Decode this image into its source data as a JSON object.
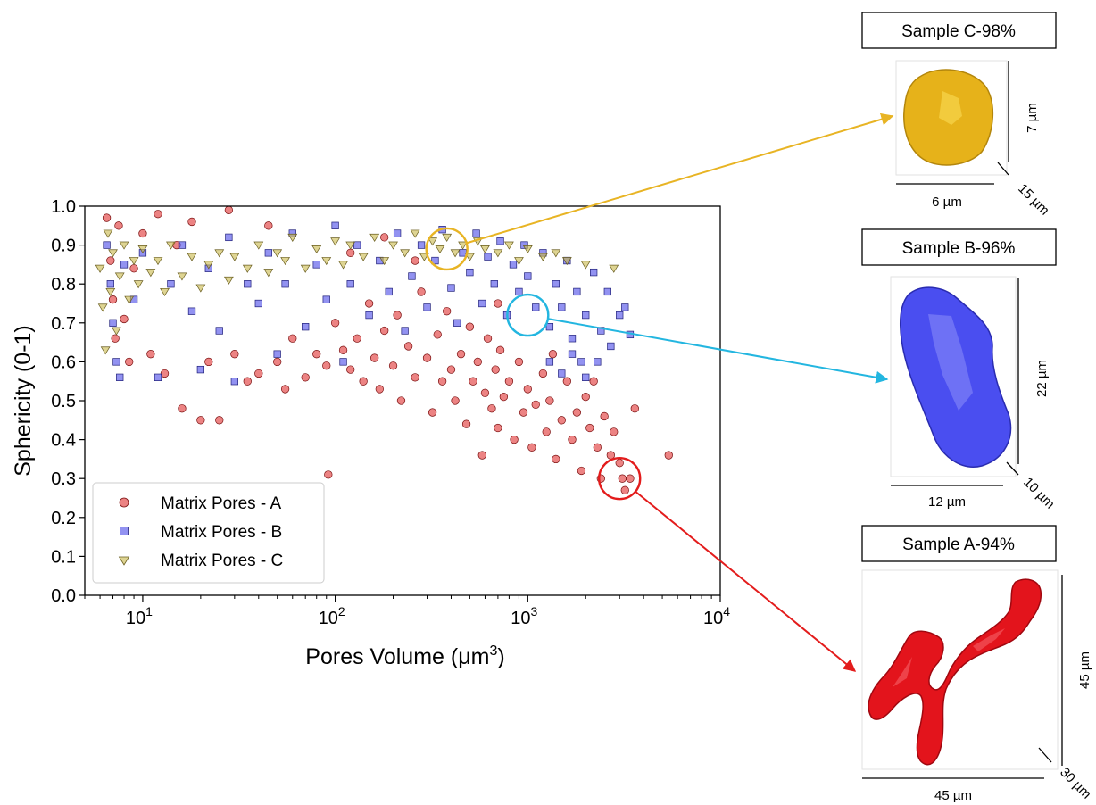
{
  "chart_data": {
    "type": "scatter",
    "xscale": "log",
    "xlim": [
      5,
      10000
    ],
    "ylim": [
      0.0,
      1.0
    ],
    "xlabel": "Pores Volume",
    "xlabel_unit": "(μm",
    "xlabel_exp": "3",
    "xlabel_close": ")",
    "ylabel": "Sphericity (0-1)",
    "x_ticks": [
      {
        "value": 10,
        "base": "10",
        "exp": "1"
      },
      {
        "value": 100,
        "base": "10",
        "exp": "2"
      },
      {
        "value": 1000,
        "base": "10",
        "exp": "3"
      },
      {
        "value": 10000,
        "base": "10",
        "exp": "4"
      }
    ],
    "y_ticks": [
      {
        "value": 0.0,
        "label": "0.0"
      },
      {
        "value": 0.1,
        "label": "0.1"
      },
      {
        "value": 0.2,
        "label": "0.2"
      },
      {
        "value": 0.3,
        "label": "0.3"
      },
      {
        "value": 0.4,
        "label": "0.4"
      },
      {
        "value": 0.5,
        "label": "0.5"
      },
      {
        "value": 0.6,
        "label": "0.6"
      },
      {
        "value": 0.7,
        "label": "0.7"
      },
      {
        "value": 0.8,
        "label": "0.8"
      },
      {
        "value": 0.9,
        "label": "0.9"
      },
      {
        "value": 1.0,
        "label": "1.0"
      }
    ],
    "grid": false,
    "legend_position": "lower-left",
    "series": [
      {
        "name": "Matrix Pores - A",
        "marker": "circle",
        "color": "#e03030",
        "edge": "#7a1010",
        "points": [
          [
            6.5,
            0.97
          ],
          [
            6.8,
            0.86
          ],
          [
            7,
            0.76
          ],
          [
            7.2,
            0.66
          ],
          [
            7.5,
            0.95
          ],
          [
            8,
            0.71
          ],
          [
            8.5,
            0.6
          ],
          [
            9,
            0.84
          ],
          [
            10,
            0.93
          ],
          [
            11,
            0.62
          ],
          [
            12,
            0.98
          ],
          [
            13,
            0.57
          ],
          [
            15,
            0.9
          ],
          [
            16,
            0.48
          ],
          [
            18,
            0.96
          ],
          [
            20,
            0.45
          ],
          [
            22,
            0.6
          ],
          [
            25,
            0.45
          ],
          [
            28,
            0.99
          ],
          [
            30,
            0.62
          ],
          [
            35,
            0.55
          ],
          [
            40,
            0.57
          ],
          [
            45,
            0.95
          ],
          [
            50,
            0.6
          ],
          [
            55,
            0.53
          ],
          [
            60,
            0.66
          ],
          [
            70,
            0.56
          ],
          [
            80,
            0.62
          ],
          [
            90,
            0.59
          ],
          [
            92,
            0.31
          ],
          [
            100,
            0.7
          ],
          [
            110,
            0.63
          ],
          [
            120,
            0.58
          ],
          [
            130,
            0.66
          ],
          [
            140,
            0.55
          ],
          [
            150,
            0.75
          ],
          [
            160,
            0.61
          ],
          [
            170,
            0.53
          ],
          [
            180,
            0.68
          ],
          [
            200,
            0.59
          ],
          [
            210,
            0.72
          ],
          [
            220,
            0.5
          ],
          [
            240,
            0.64
          ],
          [
            260,
            0.56
          ],
          [
            280,
            0.78
          ],
          [
            300,
            0.61
          ],
          [
            320,
            0.47
          ],
          [
            340,
            0.67
          ],
          [
            360,
            0.55
          ],
          [
            380,
            0.73
          ],
          [
            400,
            0.58
          ],
          [
            420,
            0.5
          ],
          [
            450,
            0.62
          ],
          [
            480,
            0.44
          ],
          [
            500,
            0.69
          ],
          [
            520,
            0.55
          ],
          [
            550,
            0.6
          ],
          [
            580,
            0.36
          ],
          [
            600,
            0.52
          ],
          [
            620,
            0.66
          ],
          [
            650,
            0.48
          ],
          [
            680,
            0.58
          ],
          [
            700,
            0.43
          ],
          [
            720,
            0.63
          ],
          [
            750,
            0.51
          ],
          [
            800,
            0.55
          ],
          [
            850,
            0.4
          ],
          [
            900,
            0.6
          ],
          [
            950,
            0.47
          ],
          [
            1000,
            0.53
          ],
          [
            1050,
            0.38
          ],
          [
            1100,
            0.49
          ],
          [
            1200,
            0.57
          ],
          [
            1250,
            0.42
          ],
          [
            1300,
            0.5
          ],
          [
            1400,
            0.35
          ],
          [
            1500,
            0.45
          ],
          [
            1600,
            0.55
          ],
          [
            1700,
            0.4
          ],
          [
            1800,
            0.47
          ],
          [
            1900,
            0.32
          ],
          [
            2000,
            0.51
          ],
          [
            2100,
            0.43
          ],
          [
            2300,
            0.38
          ],
          [
            2400,
            0.3
          ],
          [
            2500,
            0.46
          ],
          [
            2700,
            0.36
          ],
          [
            2800,
            0.42
          ],
          [
            3000,
            0.34
          ],
          [
            3100,
            0.3
          ],
          [
            3200,
            0.27
          ],
          [
            3400,
            0.3
          ],
          [
            3600,
            0.48
          ],
          [
            5400,
            0.36
          ],
          [
            2200,
            0.55
          ],
          [
            1350,
            0.62
          ],
          [
            260,
            0.86
          ],
          [
            180,
            0.92
          ],
          [
            120,
            0.88
          ],
          [
            700,
            0.75
          ]
        ]
      },
      {
        "name": "Matrix Pores - B",
        "marker": "square",
        "color": "#4a4ae8",
        "edge": "#20207a",
        "points": [
          [
            6.5,
            0.9
          ],
          [
            6.8,
            0.8
          ],
          [
            7,
            0.7
          ],
          [
            7.3,
            0.6
          ],
          [
            7.6,
            0.56
          ],
          [
            8,
            0.85
          ],
          [
            9,
            0.76
          ],
          [
            10,
            0.88
          ],
          [
            12,
            0.56
          ],
          [
            14,
            0.8
          ],
          [
            16,
            0.9
          ],
          [
            18,
            0.73
          ],
          [
            20,
            0.58
          ],
          [
            22,
            0.84
          ],
          [
            25,
            0.68
          ],
          [
            28,
            0.92
          ],
          [
            30,
            0.55
          ],
          [
            35,
            0.8
          ],
          [
            40,
            0.75
          ],
          [
            45,
            0.88
          ],
          [
            50,
            0.62
          ],
          [
            55,
            0.8
          ],
          [
            60,
            0.93
          ],
          [
            70,
            0.69
          ],
          [
            80,
            0.85
          ],
          [
            90,
            0.76
          ],
          [
            100,
            0.95
          ],
          [
            110,
            0.6
          ],
          [
            120,
            0.8
          ],
          [
            130,
            0.9
          ],
          [
            150,
            0.72
          ],
          [
            170,
            0.86
          ],
          [
            190,
            0.78
          ],
          [
            210,
            0.93
          ],
          [
            230,
            0.68
          ],
          [
            250,
            0.82
          ],
          [
            280,
            0.9
          ],
          [
            300,
            0.74
          ],
          [
            330,
            0.86
          ],
          [
            360,
            0.94
          ],
          [
            400,
            0.79
          ],
          [
            430,
            0.7
          ],
          [
            460,
            0.88
          ],
          [
            500,
            0.83
          ],
          [
            540,
            0.93
          ],
          [
            580,
            0.75
          ],
          [
            620,
            0.87
          ],
          [
            670,
            0.8
          ],
          [
            720,
            0.91
          ],
          [
            780,
            0.72
          ],
          [
            840,
            0.85
          ],
          [
            900,
            0.78
          ],
          [
            960,
            0.9
          ],
          [
            1000,
            0.82
          ],
          [
            1100,
            0.74
          ],
          [
            1200,
            0.88
          ],
          [
            1300,
            0.69
          ],
          [
            1400,
            0.8
          ],
          [
            1500,
            0.74
          ],
          [
            1600,
            0.86
          ],
          [
            1700,
            0.66
          ],
          [
            1800,
            0.78
          ],
          [
            1900,
            0.6
          ],
          [
            2000,
            0.72
          ],
          [
            2200,
            0.83
          ],
          [
            2400,
            0.68
          ],
          [
            2600,
            0.78
          ],
          [
            2700,
            0.64
          ],
          [
            3000,
            0.72
          ],
          [
            3200,
            0.74
          ],
          [
            3400,
            0.67
          ],
          [
            2000,
            0.56
          ],
          [
            1700,
            0.62
          ],
          [
            1500,
            0.57
          ],
          [
            2300,
            0.6
          ],
          [
            1300,
            0.6
          ]
        ]
      },
      {
        "name": "Matrix Pores - C",
        "marker": "triangle-down",
        "color": "#c8b84a",
        "edge": "#6a5e20",
        "points": [
          [
            6,
            0.84
          ],
          [
            6.2,
            0.74
          ],
          [
            6.4,
            0.63
          ],
          [
            6.6,
            0.93
          ],
          [
            6.8,
            0.78
          ],
          [
            7,
            0.88
          ],
          [
            7.3,
            0.68
          ],
          [
            7.6,
            0.82
          ],
          [
            8,
            0.9
          ],
          [
            8.5,
            0.76
          ],
          [
            9,
            0.86
          ],
          [
            9.5,
            0.8
          ],
          [
            10,
            0.89
          ],
          [
            11,
            0.83
          ],
          [
            12,
            0.86
          ],
          [
            13,
            0.78
          ],
          [
            14,
            0.9
          ],
          [
            16,
            0.82
          ],
          [
            18,
            0.87
          ],
          [
            20,
            0.79
          ],
          [
            22,
            0.85
          ],
          [
            25,
            0.88
          ],
          [
            28,
            0.81
          ],
          [
            30,
            0.87
          ],
          [
            35,
            0.84
          ],
          [
            40,
            0.9
          ],
          [
            45,
            0.83
          ],
          [
            50,
            0.88
          ],
          [
            55,
            0.86
          ],
          [
            60,
            0.92
          ],
          [
            70,
            0.84
          ],
          [
            80,
            0.89
          ],
          [
            90,
            0.86
          ],
          [
            100,
            0.91
          ],
          [
            110,
            0.85
          ],
          [
            120,
            0.9
          ],
          [
            140,
            0.87
          ],
          [
            160,
            0.92
          ],
          [
            180,
            0.86
          ],
          [
            200,
            0.9
          ],
          [
            230,
            0.88
          ],
          [
            260,
            0.93
          ],
          [
            290,
            0.87
          ],
          [
            320,
            0.91
          ],
          [
            350,
            0.89
          ],
          [
            380,
            0.92
          ],
          [
            420,
            0.88
          ],
          [
            460,
            0.9
          ],
          [
            500,
            0.87
          ],
          [
            550,
            0.91
          ],
          [
            600,
            0.89
          ],
          [
            700,
            0.88
          ],
          [
            800,
            0.9
          ],
          [
            900,
            0.86
          ],
          [
            1000,
            0.89
          ],
          [
            1200,
            0.87
          ],
          [
            1400,
            0.88
          ],
          [
            1600,
            0.86
          ],
          [
            2000,
            0.85
          ],
          [
            2800,
            0.84
          ]
        ]
      }
    ]
  },
  "panels": [
    {
      "title": "Sample C-98%",
      "dim_width": "6 µm",
      "dim_height": "7 µm",
      "dim_depth": "15 µm",
      "color": "#e6b21a"
    },
    {
      "title": "Sample B-96%",
      "dim_width": "12 µm",
      "dim_height": "22 µm",
      "dim_depth": "10 µm",
      "color": "#4a4ef0"
    },
    {
      "title": "Sample A-94%",
      "dim_width": "45 µm",
      "dim_height": "45 µm",
      "dim_depth": "30 µm",
      "color": "#e3141c"
    }
  ],
  "highlights": [
    {
      "x": 380,
      "y": 0.89,
      "color": "#e8b424",
      "panel": 0
    },
    {
      "x": 1000,
      "y": 0.72,
      "color": "#23b6e0",
      "panel": 1
    },
    {
      "x": 3000,
      "y": 0.3,
      "color": "#e31c1c",
      "panel": 2
    }
  ]
}
